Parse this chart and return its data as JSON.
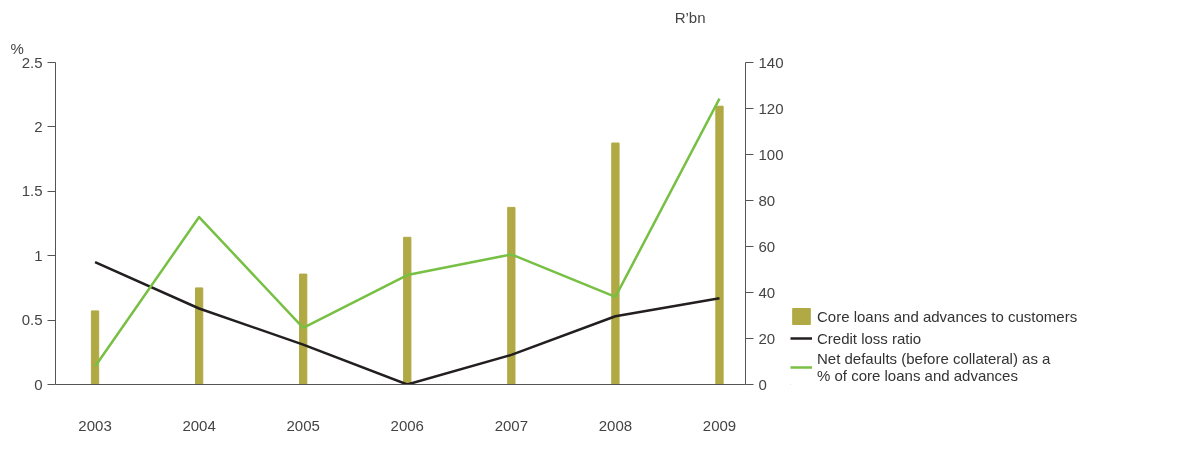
{
  "chart_data": {
    "type": "line",
    "ylabel": "%",
    "y2label": "R’bn",
    "categories": [
      "2003",
      "2004",
      "2005",
      "2006",
      "2007",
      "2008",
      "2009"
    ],
    "series": [
      {
        "name": "Core loans and advances to customers",
        "type": "bar",
        "axis": "y2",
        "color": "#b0a944",
        "values": [
          32,
          42,
          48,
          64,
          77,
          105,
          121
        ]
      },
      {
        "name": "Credit loss ratio",
        "color": "#231f20",
        "values": [
          0.95,
          0.59,
          0.31,
          0.0,
          0.23,
          0.53,
          0.67
        ]
      },
      {
        "name": "Net defaults (before collateral) as a % of core loans and advances",
        "color": "#77c043",
        "values": [
          0.14,
          1.3,
          0.44,
          0.85,
          1.01,
          0.68,
          2.22
        ]
      }
    ],
    "ylim": [
      0,
      2.5
    ],
    "yticks": [
      0,
      0.5,
      1,
      1.5,
      2,
      2.5
    ],
    "y2lim": [
      0,
      140
    ],
    "y2ticks": [
      0,
      20,
      40,
      60,
      80,
      100,
      120,
      140
    ],
    "grid": false,
    "legend": "bottom right",
    "marker": "none",
    "line_style": "solid"
  }
}
